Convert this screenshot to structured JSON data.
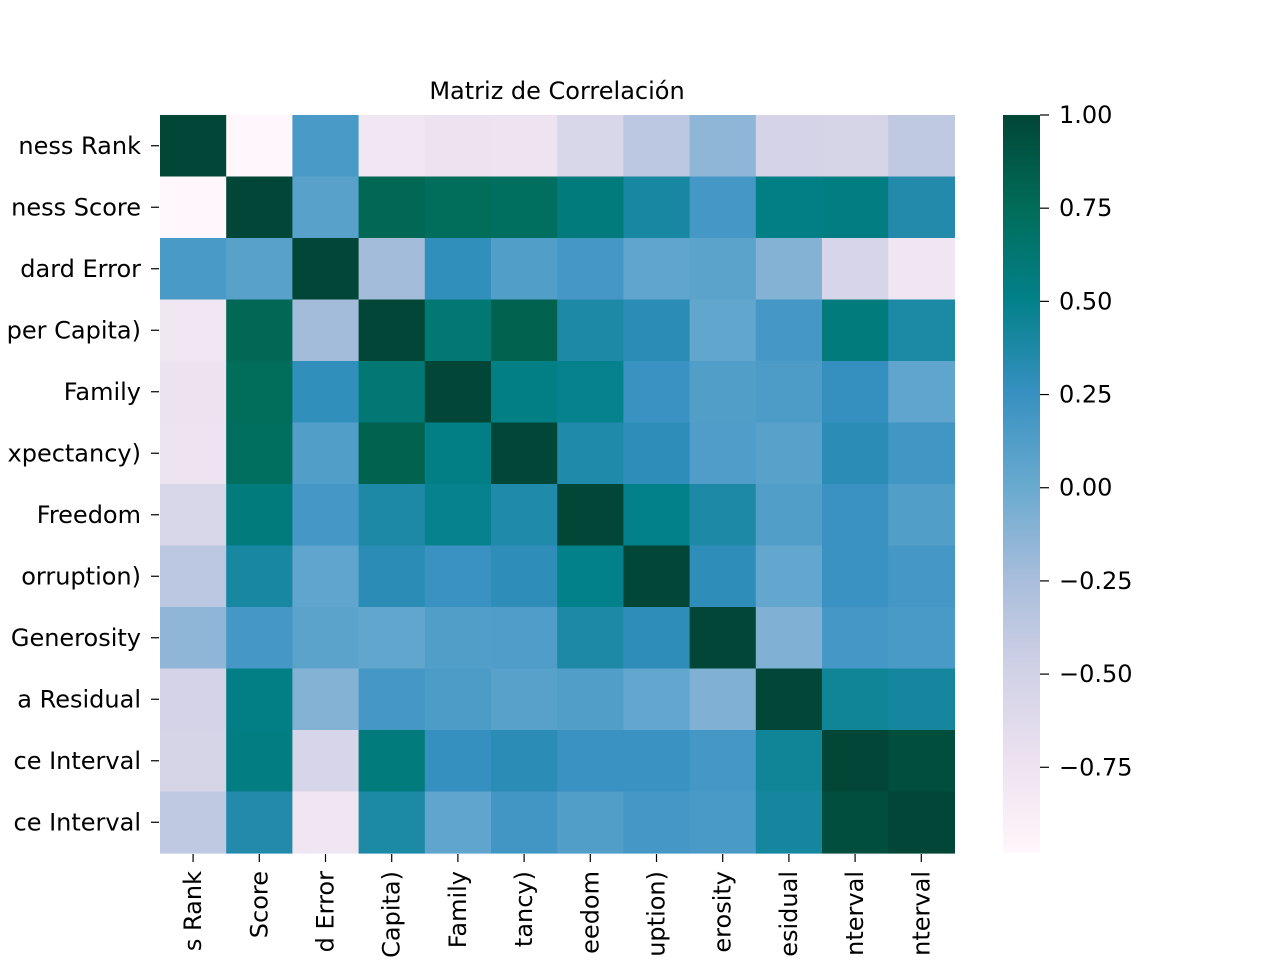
{
  "chart_data": {
    "type": "heatmap",
    "title": "Matriz de Correlación",
    "row_labels": [
      "ness Rank",
      "ness Score",
      "dard Error",
      "per Capita)",
      "Family",
      "xpectancy)",
      "Freedom",
      "orruption)",
      "Generosity",
      "a Residual",
      "ce Interval",
      "ce Interval"
    ],
    "col_labels": [
      "s Rank",
      "Score",
      "d Error",
      "Capita)",
      "Family",
      "tancy)",
      "eedom",
      "uption)",
      "erosity",
      "esidual",
      "nterval",
      "nterval"
    ],
    "values": [
      [
        1.0,
        -0.98,
        0.16,
        -0.79,
        -0.73,
        -0.76,
        -0.56,
        -0.37,
        -0.15,
        -0.52,
        -0.54,
        -0.39
      ],
      [
        -0.98,
        1.0,
        0.09,
        0.78,
        0.74,
        0.72,
        0.57,
        0.4,
        0.18,
        0.53,
        0.55,
        0.35
      ],
      [
        0.16,
        0.09,
        1.0,
        -0.22,
        0.28,
        0.12,
        0.18,
        0.05,
        0.07,
        -0.1,
        -0.55,
        -0.78
      ],
      [
        -0.79,
        0.78,
        -0.22,
        1.0,
        0.61,
        0.82,
        0.37,
        0.31,
        0.04,
        0.18,
        0.57,
        0.38
      ],
      [
        -0.73,
        0.74,
        0.28,
        0.61,
        1.0,
        0.53,
        0.49,
        0.24,
        0.12,
        0.14,
        0.26,
        0.05
      ],
      [
        -0.76,
        0.72,
        0.12,
        0.82,
        0.53,
        1.0,
        0.36,
        0.29,
        0.13,
        0.09,
        0.31,
        0.2
      ],
      [
        -0.56,
        0.57,
        0.18,
        0.37,
        0.49,
        0.36,
        1.0,
        0.5,
        0.37,
        0.12,
        0.24,
        0.12
      ],
      [
        -0.37,
        0.4,
        0.05,
        0.31,
        0.24,
        0.29,
        0.5,
        1.0,
        0.29,
        0.03,
        0.24,
        0.18
      ],
      [
        -0.15,
        0.18,
        0.07,
        0.04,
        0.12,
        0.13,
        0.37,
        0.29,
        1.0,
        -0.09,
        0.18,
        0.16
      ],
      [
        -0.52,
        0.53,
        -0.1,
        0.18,
        0.14,
        0.09,
        0.12,
        0.03,
        -0.09,
        1.0,
        0.44,
        0.42
      ],
      [
        -0.54,
        0.55,
        -0.55,
        0.57,
        0.26,
        0.31,
        0.24,
        0.24,
        0.18,
        0.44,
        1.0,
        0.95
      ],
      [
        -0.39,
        0.35,
        -0.78,
        0.38,
        0.05,
        0.2,
        0.12,
        0.18,
        0.16,
        0.42,
        0.95,
        1.0
      ]
    ],
    "vmin": -0.98,
    "vmax": 1.0,
    "colormap": "PuBuGn",
    "colorbar_ticks": [
      1.0,
      0.75,
      0.5,
      0.25,
      0.0,
      -0.25,
      -0.5,
      -0.75
    ],
    "colorbar_tick_labels": [
      "1.00",
      "0.75",
      "0.50",
      "0.25",
      "0.00",
      "−0.25",
      "−0.50",
      "−0.75"
    ],
    "colorbar_stops": [
      "#fff7fb",
      "#ece2f0",
      "#d0d1e6",
      "#a6bddb",
      "#67a9cf",
      "#3690c0",
      "#02818a",
      "#016c59",
      "#014636"
    ]
  }
}
